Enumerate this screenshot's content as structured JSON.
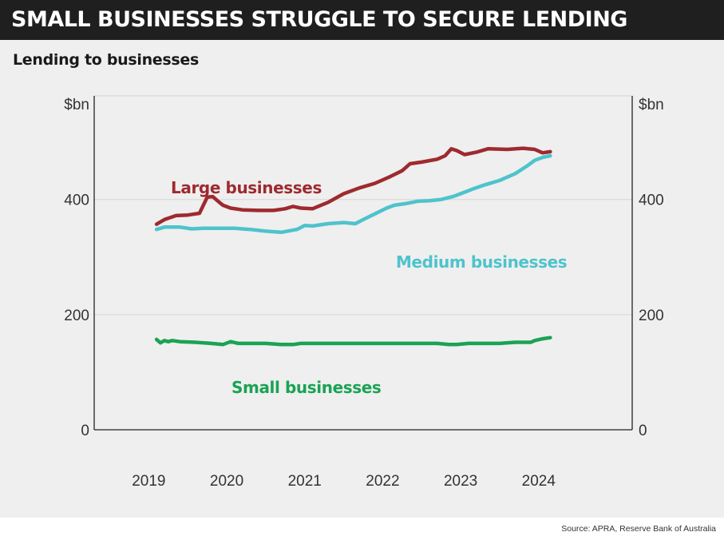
{
  "headline": "SMALL BUSINESSES STRUGGLE TO SECURE LENDING",
  "source": "Source: APRA, Reserve Bank of Australia",
  "colors": {
    "large": "#9e2a2f",
    "medium": "#4ec3cc",
    "small": "#1aa353",
    "header_bg": "#1f1f1f",
    "panel_bg": "#efefef"
  },
  "chart_data": {
    "type": "line",
    "title": "Lending to businesses",
    "ylabel_left": "$bn",
    "ylabel_right": "$bn",
    "ylim": [
      0,
      580
    ],
    "yticks": [
      0,
      200,
      400
    ],
    "xlim": [
      2018.3,
      2025.2
    ],
    "xticks": [
      2019,
      2020,
      2021,
      2022,
      2023,
      2024
    ],
    "grid": true,
    "legend": "inline labels",
    "series": [
      {
        "name": "Large businesses",
        "key": "large",
        "x": [
          2019.1,
          2019.2,
          2019.35,
          2019.5,
          2019.65,
          2019.75,
          2019.82,
          2019.88,
          2019.95,
          2020.05,
          2020.2,
          2020.4,
          2020.6,
          2020.75,
          2020.85,
          2020.95,
          2021.1,
          2021.3,
          2021.5,
          2021.7,
          2021.9,
          2022.1,
          2022.25,
          2022.35,
          2022.5,
          2022.7,
          2022.8,
          2022.88,
          2022.95,
          2023.05,
          2023.2,
          2023.35,
          2023.6,
          2023.8,
          2023.95,
          2024.05,
          2024.15
        ],
        "values": [
          357,
          365,
          372,
          373,
          376,
          404,
          405,
          398,
          390,
          385,
          382,
          381,
          381,
          384,
          388,
          385,
          384,
          395,
          410,
          420,
          428,
          440,
          450,
          462,
          465,
          470,
          476,
          488,
          485,
          478,
          482,
          488,
          487,
          489,
          487,
          481,
          483
        ]
      },
      {
        "name": "Medium businesses",
        "key": "medium",
        "x": [
          2019.1,
          2019.2,
          2019.4,
          2019.55,
          2019.7,
          2019.85,
          2020.1,
          2020.3,
          2020.5,
          2020.7,
          2020.9,
          2021.0,
          2021.1,
          2021.3,
          2021.5,
          2021.65,
          2021.75,
          2021.9,
          2022.05,
          2022.15,
          2022.3,
          2022.45,
          2022.6,
          2022.75,
          2022.9,
          2023.0,
          2023.15,
          2023.3,
          2023.5,
          2023.7,
          2023.85,
          2023.95,
          2024.05,
          2024.15
        ],
        "values": [
          348,
          352,
          352,
          349,
          350,
          350,
          350,
          348,
          345,
          343,
          348,
          355,
          354,
          358,
          360,
          358,
          365,
          375,
          385,
          390,
          393,
          397,
          398,
          400,
          405,
          410,
          418,
          425,
          433,
          445,
          458,
          468,
          473,
          476
        ]
      },
      {
        "name": "Small businesses",
        "key": "small",
        "x": [
          2019.1,
          2019.15,
          2019.2,
          2019.25,
          2019.3,
          2019.4,
          2019.6,
          2019.8,
          2019.95,
          2020.05,
          2020.15,
          2020.3,
          2020.5,
          2020.7,
          2020.85,
          2020.95,
          2021.05,
          2021.15,
          2021.35,
          2021.55,
          2021.75,
          2021.95,
          2022.1,
          2022.25,
          2022.35,
          2022.5,
          2022.7,
          2022.85,
          2022.95,
          2023.1,
          2023.3,
          2023.5,
          2023.7,
          2023.9,
          2023.95,
          2024.05,
          2024.15
        ],
        "values": [
          157,
          151,
          155,
          153,
          155,
          153,
          152,
          150,
          148,
          153,
          150,
          150,
          150,
          148,
          148,
          150,
          150,
          150,
          150,
          150,
          150,
          150,
          150,
          150,
          150,
          150,
          150,
          148,
          148,
          150,
          150,
          150,
          152,
          152,
          155,
          158,
          160
        ]
      }
    ]
  }
}
